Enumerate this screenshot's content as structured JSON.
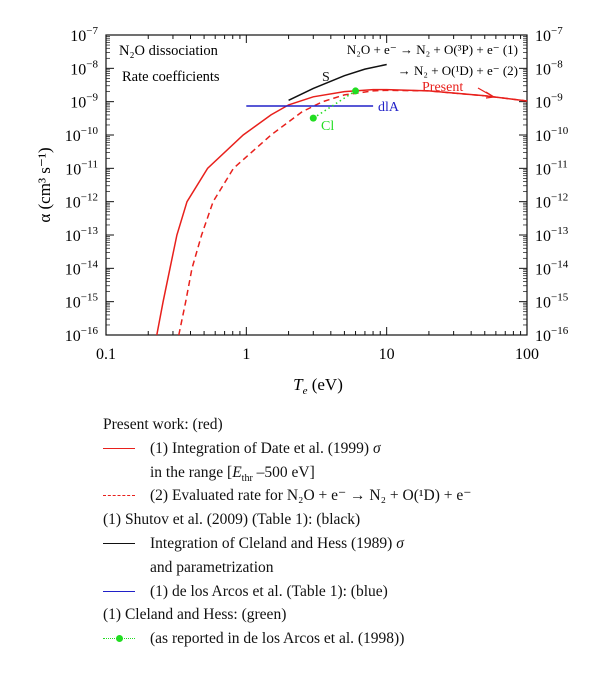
{
  "chart_data": {
    "type": "line",
    "title": "",
    "annotations": {
      "title1": "N₂O dissociation",
      "title2": "Rate coefficients",
      "reaction1": "N₂O + e⁻ → N₂ + O(³P) + e⁻ (1)",
      "reaction2": "→ N₂ + O(¹D) + e⁻ (2)",
      "label_S": "S",
      "label_present": "Present",
      "label_dlA": "dlA",
      "label_Cl": "Cl"
    },
    "xlabel": {
      "main": "T",
      "sub": "e",
      "unit": " (eV)"
    },
    "ylabel": "α (cm³ s⁻¹)",
    "xscale": "log",
    "yscale": "log",
    "xlim": [
      0.1,
      100
    ],
    "ylim": [
      1e-16,
      1e-07
    ],
    "xticks": [
      {
        "v": 0.1,
        "label": "0.1"
      },
      {
        "v": 1,
        "label": "1"
      },
      {
        "v": 10,
        "label": "10"
      },
      {
        "v": 100,
        "label": "100"
      }
    ],
    "yticks": [
      {
        "e": -7
      },
      {
        "e": -8
      },
      {
        "e": -9
      },
      {
        "e": -10
      },
      {
        "e": -11
      },
      {
        "e": -12
      },
      {
        "e": -13
      },
      {
        "e": -14
      },
      {
        "e": -15
      },
      {
        "e": -16
      }
    ],
    "ytick_base": "10",
    "series": [
      {
        "name": "Present (1) Date et al. integration",
        "color": "#e8201c",
        "style": "solid",
        "points": [
          [
            0.23,
            1e-16
          ],
          [
            0.255,
            1e-15
          ],
          [
            0.286,
            1e-14
          ],
          [
            0.32,
            1e-13
          ],
          [
            0.378,
            1e-12
          ],
          [
            0.53,
            1e-11
          ],
          [
            0.95,
            1e-10
          ],
          [
            1.5,
            4e-10
          ],
          [
            2,
            8e-10
          ],
          [
            3,
            1.4e-09
          ],
          [
            5,
            2e-09
          ],
          [
            8,
            2.3e-09
          ],
          [
            10,
            2.3e-09
          ],
          [
            20,
            2.1e-09
          ],
          [
            50,
            1.5e-09
          ],
          [
            100,
            1.05e-09
          ]
        ]
      },
      {
        "name": "Present (2) O(1D) evaluated",
        "color": "#e8201c",
        "style": "dashed",
        "points": [
          [
            0.33,
            1e-16
          ],
          [
            0.37,
            1e-15
          ],
          [
            0.41,
            1e-14
          ],
          [
            0.48,
            1e-13
          ],
          [
            0.58,
            1e-12
          ],
          [
            0.81,
            1e-11
          ],
          [
            1.5,
            1e-10
          ],
          [
            2.5,
            5e-10
          ],
          [
            3.5,
            1e-09
          ],
          [
            5,
            1.6e-09
          ],
          [
            8,
            2.1e-09
          ],
          [
            10,
            2.2e-09
          ],
          [
            20,
            2.1e-09
          ],
          [
            50,
            1.5e-09
          ],
          [
            100,
            1.05e-09
          ]
        ]
      },
      {
        "name": "Shutov et al. (S)",
        "color": "#111111",
        "style": "solid",
        "points": [
          [
            2,
            1.1e-09
          ],
          [
            3,
            2.5e-09
          ],
          [
            5,
            6e-09
          ],
          [
            7,
            9.5e-09
          ],
          [
            10,
            1.3e-08
          ]
        ]
      },
      {
        "name": "de los Arcos et al. (dlA)",
        "color": "#2020c8",
        "style": "solid",
        "points": [
          [
            1,
            7.4e-10
          ],
          [
            8,
            7.4e-10
          ]
        ]
      },
      {
        "name": "Cleland and Hess (Cl)",
        "color": "#22dd22",
        "style": "dotted-markers",
        "points": [
          [
            3,
            3.2e-10
          ],
          [
            6,
            2.1e-09
          ]
        ]
      }
    ]
  },
  "legend": {
    "present_header": "Present work: (red)",
    "present1_a": "(1) Integration of Date et al. (1999) ",
    "present1_sigma": "σ",
    "present1_b": "in the range [",
    "present1_E": "E",
    "present1_thr": "thr",
    "present1_c": " –500 eV]",
    "present2": "(2) Evaluated rate for N₂O + e⁻ → N₂ + O(¹D) + e⁻",
    "shutov_header": "(1) Shutov et al. (2009) (Table 1): (black)",
    "shutov1": "Integration of Cleland and Hess (1989) ",
    "shutov1_sigma": "σ",
    "shutov2": "and parametrization",
    "dla": "(1) de los Arcos et al. (Table 1): (blue)",
    "cl_header": "(1) Cleland and Hess: (green)",
    "cl": "(as reported in de los Arcos et al. (1998))"
  }
}
